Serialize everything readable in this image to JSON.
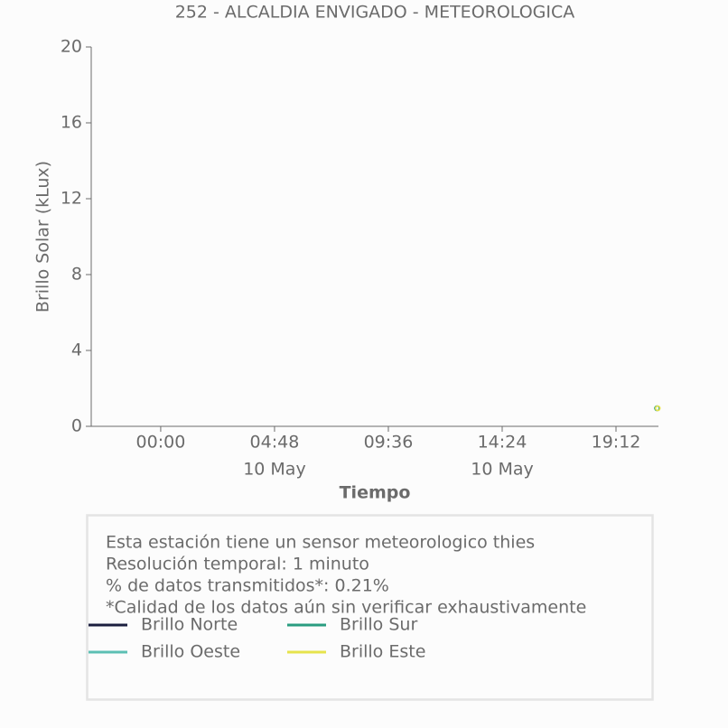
{
  "chart_data": {
    "type": "line",
    "title": "252 - ALCALDIA ENVIGADO - METEOROLOGICA",
    "y_label": "Brillo Solar (kLux)",
    "x_label": "Tiempo",
    "xlim": [
      -2.93,
      20.99
    ],
    "xticks": [
      {
        "value": 0,
        "label": "00:00"
      },
      {
        "value": 4.8,
        "label": "04:48"
      },
      {
        "value": 9.6,
        "label": "09:36"
      },
      {
        "value": 14.4,
        "label": "14:24"
      },
      {
        "value": 19.2,
        "label": "19:12"
      }
    ],
    "xtick_dates": [
      {
        "value": 4.8,
        "label": "10 May"
      },
      {
        "value": 14.4,
        "label": "10 May"
      }
    ],
    "ylim": [
      0,
      20
    ],
    "yticks": [
      0,
      4,
      8,
      12,
      16,
      20
    ],
    "series": [
      {
        "name": "Brillo Norte",
        "color": "#1c1f3f",
        "x": [],
        "values": []
      },
      {
        "name": "Brillo Sur",
        "color": "#2a9d80",
        "x": [
          20.93
        ],
        "values": [
          0.95
        ]
      },
      {
        "name": "Brillo Oeste",
        "color": "#5cbfb3",
        "x": [],
        "values": []
      },
      {
        "name": "Brillo Este",
        "color": "#e6e34c",
        "x": [
          20.96
        ],
        "values": [
          0.95
        ]
      }
    ],
    "annotation": [
      "Esta estación tiene un sensor meteorologico thies",
      "Resolución temporal: 1 minuto",
      "% de datos transmitidos*: 0.21%",
      "*Calidad de los datos aún sin verificar exhaustivamente"
    ]
  }
}
